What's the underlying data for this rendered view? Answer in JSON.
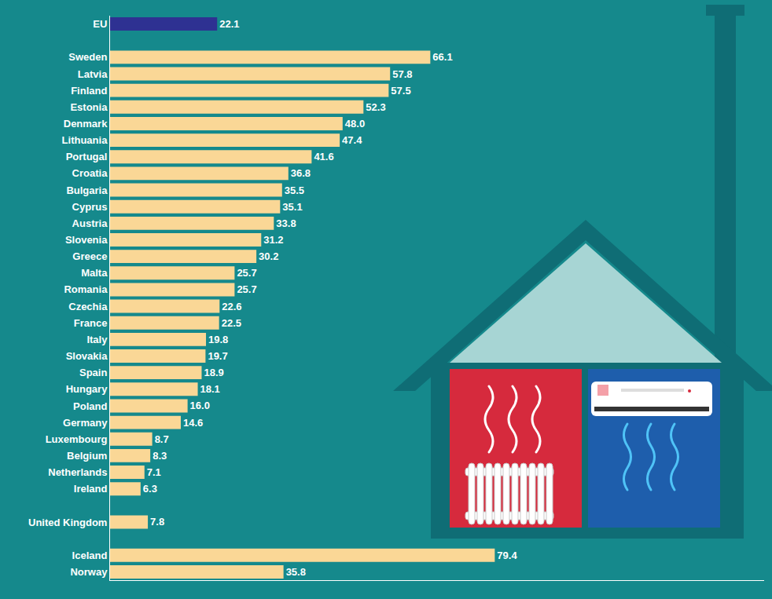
{
  "chart_data": {
    "type": "bar",
    "orientation": "horizontal",
    "categories": [
      "EU",
      null,
      "Sweden",
      "Latvia",
      "Finland",
      "Estonia",
      "Denmark",
      "Lithuania",
      "Portugal",
      "Croatia",
      "Bulgaria",
      "Cyprus",
      "Austria",
      "Slovenia",
      "Greece",
      "Malta",
      "Romania",
      "Czechia",
      "France",
      "Italy",
      "Slovakia",
      "Spain",
      "Hungary",
      "Poland",
      "Germany",
      "Luxembourg",
      "Belgium",
      "Netherlands",
      "Ireland",
      null,
      "United Kingdom",
      null,
      "Iceland",
      "Norway"
    ],
    "values": [
      22.1,
      null,
      66.1,
      57.8,
      57.5,
      52.3,
      48.0,
      47.4,
      41.6,
      36.8,
      35.5,
      35.1,
      33.8,
      31.2,
      30.2,
      25.7,
      25.7,
      22.6,
      22.5,
      19.8,
      19.7,
      18.9,
      18.1,
      16.0,
      14.6,
      8.7,
      8.3,
      7.1,
      6.3,
      null,
      7.8,
      null,
      79.4,
      35.8
    ],
    "value_labels": [
      "22.1",
      null,
      "66.1",
      "57.8",
      "57.5",
      "52.3",
      "48.0",
      "47.4",
      "41.6",
      "36.8",
      "35.5",
      "35.1",
      "33.8",
      "31.2",
      "30.2",
      "25.7",
      "25.7",
      "22.6",
      "22.5",
      "19.8",
      "19.7",
      "18.9",
      "18.1",
      "16.0",
      "14.6",
      "8.7",
      "8.3",
      "7.1",
      "6.3",
      null,
      "7.8",
      null,
      "79.4",
      "35.8"
    ],
    "colors": [
      "#2e3192",
      null,
      "#fad796",
      "#fad796",
      "#fad796",
      "#fad796",
      "#fad796",
      "#fad796",
      "#fad796",
      "#fad796",
      "#fad796",
      "#fad796",
      "#fad796",
      "#fad796",
      "#fad796",
      "#fad796",
      "#fad796",
      "#fad796",
      "#fad796",
      "#fad796",
      "#fad796",
      "#fad796",
      "#fad796",
      "#fad796",
      "#fad796",
      "#fad796",
      "#fad796",
      "#fad796",
      "#fad796",
      null,
      "#fad796",
      null,
      "#fad796",
      "#fad796"
    ],
    "xlim": [
      0,
      135
    ],
    "xticks": [],
    "tick_labels": "y",
    "data_labels": true,
    "grid": false
  }
}
